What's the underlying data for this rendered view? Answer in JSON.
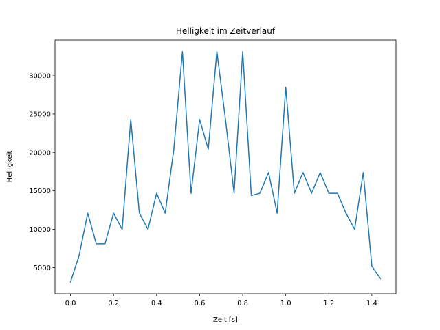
{
  "chart_data": {
    "type": "line",
    "title": "Helligkeit im Zeitverlauf",
    "xlabel": "Zeit [s]",
    "ylabel": "Helligkeit",
    "xlim": [
      -0.072,
      1.512
    ],
    "ylim": [
      1650,
      34650
    ],
    "x_ticks": [
      0.0,
      0.2,
      0.4,
      0.6,
      0.8,
      1.0,
      1.2,
      1.4
    ],
    "x_tick_labels": [
      "0.0",
      "0.2",
      "0.4",
      "0.6",
      "0.8",
      "1.0",
      "1.2",
      "1.4"
    ],
    "y_ticks": [
      5000,
      10000,
      15000,
      20000,
      25000,
      30000
    ],
    "y_tick_labels": [
      "5000",
      "10000",
      "15000",
      "20000",
      "25000",
      "30000"
    ],
    "grid": false,
    "line_color": "#1f77b4",
    "series": [
      {
        "x": [
          0.0,
          0.04,
          0.08,
          0.12,
          0.16,
          0.2,
          0.24,
          0.28,
          0.32,
          0.36,
          0.4,
          0.44,
          0.48,
          0.52,
          0.56,
          0.6,
          0.64,
          0.68,
          0.72,
          0.76,
          0.8,
          0.84,
          0.88,
          0.92,
          0.96,
          1.0,
          1.04,
          1.08,
          1.12,
          1.16,
          1.2,
          1.24,
          1.28,
          1.32,
          1.36,
          1.4,
          1.44
        ],
        "values": [
          3150,
          6600,
          12100,
          8100,
          8100,
          12100,
          10000,
          24300,
          12100,
          10000,
          14700,
          12100,
          20400,
          33150,
          14700,
          24300,
          20400,
          33150,
          24300,
          14700,
          33150,
          14400,
          14700,
          17400,
          12100,
          28500,
          14700,
          17400,
          14700,
          17400,
          14700,
          14700,
          12100,
          10000,
          17400,
          5200,
          3600
        ]
      }
    ]
  }
}
